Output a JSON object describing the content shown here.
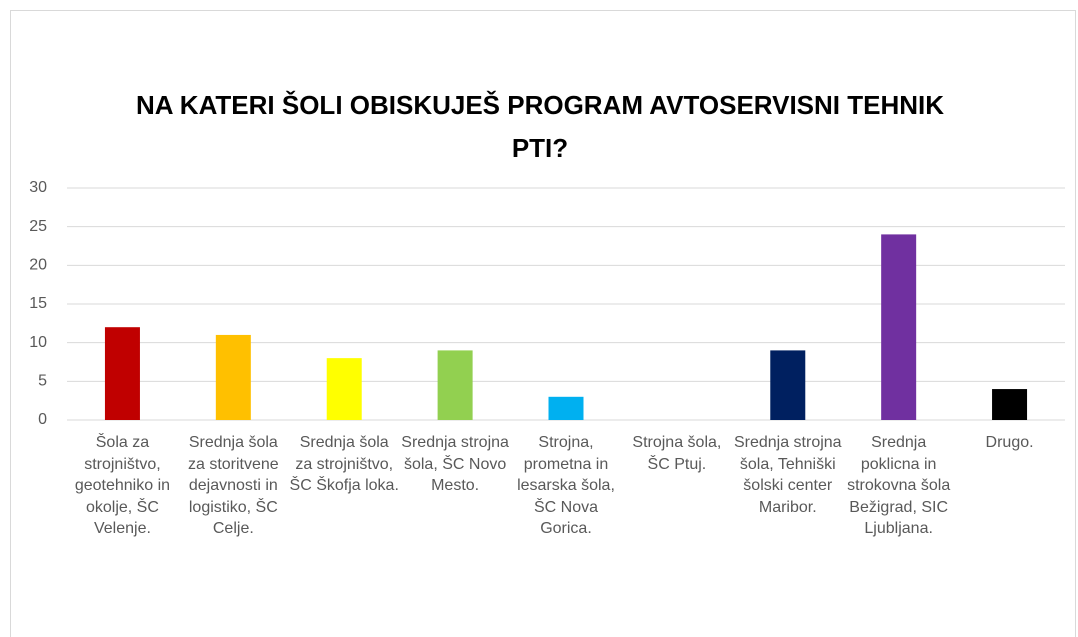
{
  "chart_data": {
    "type": "bar",
    "title": "NA KATERI ŠOLI OBISKUJEŠ PROGRAM AVTOSERVISNI TEHNIK PTI?",
    "categories": [
      "Šola za strojništvo, geotehniko in okolje, ŠC Velenje.",
      "Srednja šola za storitvene dejavnosti in logistiko, ŠC Celje.",
      "Srednja šola za strojništvo, ŠC Škofja loka.",
      "Srednja strojna šola, ŠC Novo Mesto.",
      "Strojna, prometna in lesarska šola, ŠC Nova Gorica.",
      "Strojna šola, ŠC Ptuj.",
      "Srednja strojna šola, Tehniški šolski center Maribor.",
      "Srednja poklicna in strokovna šola Bežigrad, SIC Ljubljana.",
      "Drugo."
    ],
    "values": [
      12,
      11,
      8,
      9,
      3,
      0,
      9,
      24,
      4
    ],
    "colors": [
      "#c00000",
      "#ffc000",
      "#ffff00",
      "#92d050",
      "#00b0f0",
      "#0070c0",
      "#002060",
      "#7030a0",
      "#000000"
    ],
    "ylim": [
      0,
      30
    ],
    "yticks": [
      0,
      5,
      10,
      15,
      20,
      25,
      30
    ],
    "grid": true
  }
}
